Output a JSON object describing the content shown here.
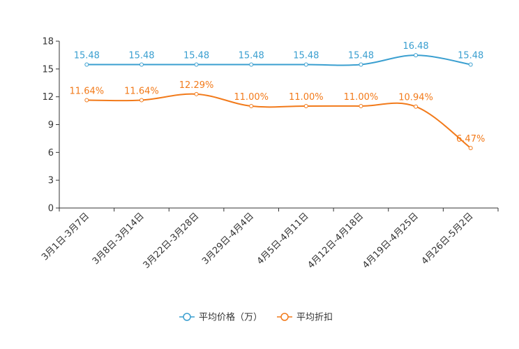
{
  "chart_data": {
    "type": "line",
    "title": "",
    "xlabel": "",
    "ylabel": "",
    "categories": [
      "3月1日-3月7日",
      "3月8日-3月14日",
      "3月22日-3月28日",
      "3月29日-4月4日",
      "4月5日-4月11日",
      "4月12日-4月18日",
      "4月19日-4月25日",
      "4月26日-5月2日"
    ],
    "ylim": [
      0,
      18
    ],
    "yticks": [
      0,
      3,
      6,
      9,
      12,
      15,
      18
    ],
    "grid": false,
    "legend_position": "bottom-center",
    "series": [
      {
        "name": "平均价格（万）",
        "color": "#3a9fd0",
        "values": [
          15.48,
          15.48,
          15.48,
          15.48,
          15.48,
          15.48,
          16.48,
          15.48
        ],
        "labels": [
          "15.48",
          "15.48",
          "15.48",
          "15.48",
          "15.48",
          "15.48",
          "16.48",
          "15.48"
        ]
      },
      {
        "name": "平均折扣",
        "color": "#f27a1a",
        "values": [
          11.64,
          11.64,
          12.29,
          11.0,
          11.0,
          11.0,
          10.94,
          6.47
        ],
        "labels": [
          "11.64%",
          "11.64%",
          "12.29%",
          "11.00%",
          "11.00%",
          "11.00%",
          "10.94%",
          "6.47%"
        ]
      }
    ]
  }
}
